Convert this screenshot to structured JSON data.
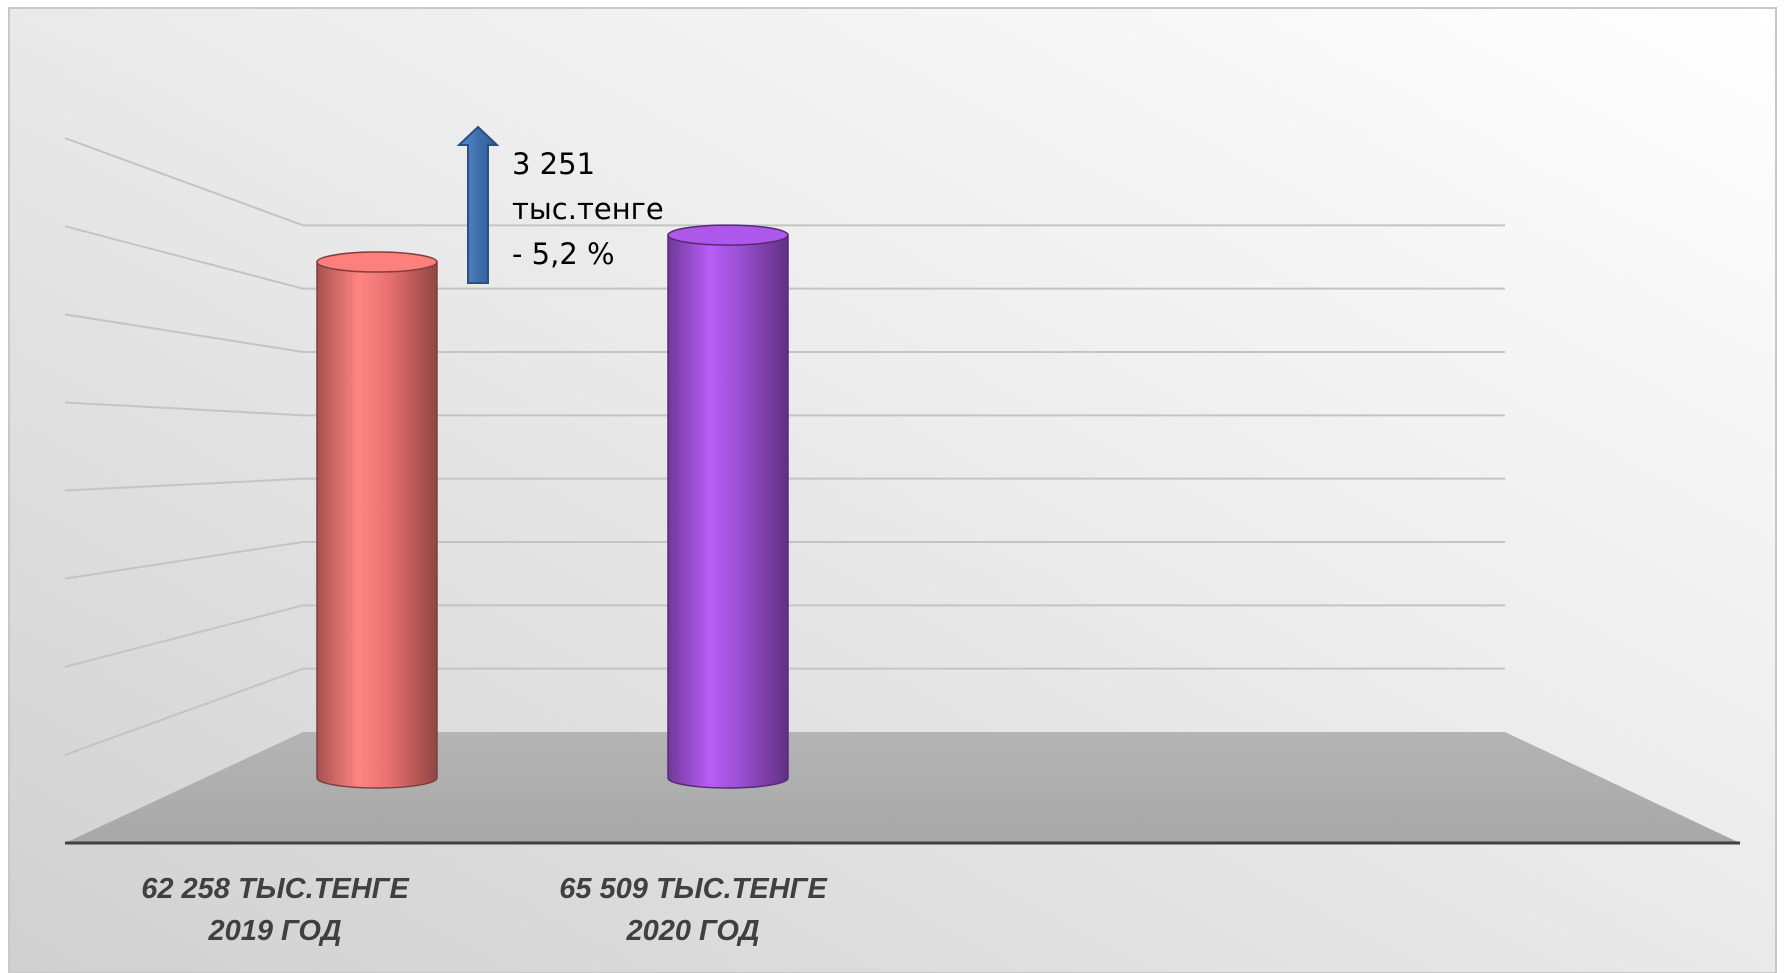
{
  "chart_data": {
    "type": "bar",
    "style": "3d-cylinder",
    "grid": true,
    "legend": "none",
    "ylim": [
      0,
      80000
    ],
    "series": [
      {
        "values": [
          62258,
          65509
        ]
      }
    ],
    "categories": [
      {
        "line1": "62 258 ТЫС.ТЕНГЕ",
        "line2": "2019 ГОД"
      },
      {
        "line1": "65 509 ТЫС.ТЕНГЕ",
        "line2": "2020 ГОД"
      }
    ],
    "bar_colors": [
      "#e8716f",
      "#9b4fd2"
    ],
    "annotation": {
      "lines": [
        "3 251",
        "тыс.тенге",
        "- 5,2 %"
      ],
      "arrow_color": "#3f6fae"
    }
  }
}
